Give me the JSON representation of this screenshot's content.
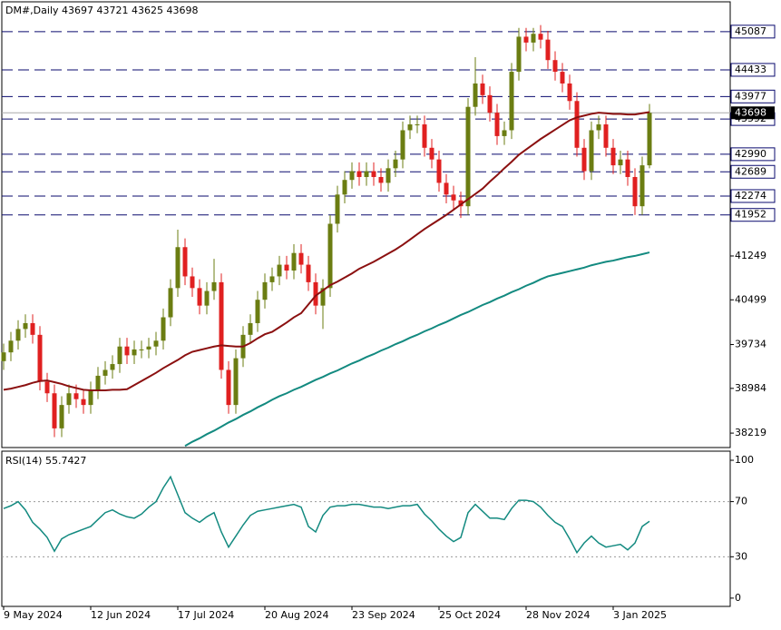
{
  "chart_data": {
    "type": "candlestick",
    "title": "DM#,Daily  43697 43721 43625 43698",
    "categories": [
      "9 May 2024",
      null,
      null,
      null,
      null,
      null,
      null,
      null,
      null,
      null,
      null,
      null,
      "12 Jun 2024",
      null,
      null,
      null,
      null,
      null,
      null,
      null,
      null,
      null,
      null,
      null,
      "17 Jul 2024",
      null,
      null,
      null,
      null,
      null,
      null,
      null,
      null,
      null,
      null,
      null,
      "20 Aug 2024",
      null,
      null,
      null,
      null,
      null,
      null,
      null,
      null,
      null,
      null,
      null,
      "23 Sep 2024",
      null,
      null,
      null,
      null,
      null,
      null,
      null,
      null,
      null,
      null,
      null,
      "25 Oct 2024",
      null,
      null,
      null,
      null,
      null,
      null,
      null,
      null,
      null,
      null,
      null,
      "28 Nov 2024",
      null,
      null,
      null,
      null,
      null,
      null,
      null,
      null,
      null,
      null,
      null,
      "3 Jan 2025",
      null,
      null,
      null,
      null,
      null
    ],
    "candles": [
      [
        39450,
        39750,
        39300,
        39600
      ],
      [
        39600,
        39950,
        39450,
        39800
      ],
      [
        39800,
        40150,
        39650,
        40000
      ],
      [
        40000,
        40250,
        39850,
        40100
      ],
      [
        40100,
        40250,
        39750,
        39900
      ],
      [
        39900,
        40050,
        38950,
        39100
      ],
      [
        39100,
        39250,
        38750,
        38900
      ],
      [
        38900,
        39050,
        38150,
        38300
      ],
      [
        38300,
        38850,
        38150,
        38700
      ],
      [
        38700,
        39050,
        38550,
        38900
      ],
      [
        38900,
        39050,
        38650,
        38800
      ],
      [
        38800,
        38950,
        38550,
        38700
      ],
      [
        38700,
        39100,
        38550,
        38950
      ],
      [
        38950,
        39350,
        38800,
        39200
      ],
      [
        39200,
        39450,
        39050,
        39300
      ],
      [
        39300,
        39550,
        39150,
        39400
      ],
      [
        39400,
        39850,
        39250,
        39700
      ],
      [
        39700,
        39850,
        39400,
        39550
      ],
      [
        39550,
        39800,
        39400,
        39650
      ],
      [
        39650,
        39800,
        39500,
        39650
      ],
      [
        39650,
        39850,
        39500,
        39700
      ],
      [
        39700,
        39950,
        39550,
        39800
      ],
      [
        39800,
        40350,
        39650,
        40200
      ],
      [
        40200,
        40850,
        40050,
        40700
      ],
      [
        40700,
        41700,
        40550,
        41400
      ],
      [
        41400,
        41550,
        40750,
        40900
      ],
      [
        40900,
        41050,
        40550,
        40700
      ],
      [
        40700,
        40850,
        40250,
        40400
      ],
      [
        40400,
        40800,
        40250,
        40650
      ],
      [
        40650,
        41200,
        40500,
        40800
      ],
      [
        40800,
        40950,
        39150,
        39300
      ],
      [
        39300,
        39450,
        38550,
        38700
      ],
      [
        38700,
        39650,
        38550,
        39500
      ],
      [
        39500,
        40050,
        39350,
        39900
      ],
      [
        39900,
        40250,
        39750,
        40100
      ],
      [
        40100,
        40650,
        39950,
        40500
      ],
      [
        40500,
        40950,
        40350,
        40800
      ],
      [
        40800,
        41050,
        40650,
        40900
      ],
      [
        40900,
        41250,
        40750,
        41100
      ],
      [
        41100,
        41250,
        40850,
        41000
      ],
      [
        41000,
        41450,
        40850,
        41300
      ],
      [
        41300,
        41450,
        40950,
        41100
      ],
      [
        41100,
        41250,
        40650,
        40800
      ],
      [
        40800,
        40950,
        40250,
        40400
      ],
      [
        40400,
        40850,
        40000,
        40700
      ],
      [
        40700,
        41950,
        40550,
        41800
      ],
      [
        41800,
        42450,
        41650,
        42300
      ],
      [
        42300,
        42700,
        42150,
        42550
      ],
      [
        42550,
        42850,
        42400,
        42700
      ],
      [
        42700,
        42850,
        42450,
        42600
      ],
      [
        42600,
        42850,
        42450,
        42700
      ],
      [
        42700,
        42850,
        42450,
        42600
      ],
      [
        42600,
        42750,
        42350,
        42500
      ],
      [
        42500,
        42900,
        42350,
        42750
      ],
      [
        42750,
        43050,
        42600,
        42900
      ],
      [
        42900,
        43550,
        42750,
        43400
      ],
      [
        43400,
        43650,
        43250,
        43500
      ],
      [
        43500,
        43650,
        43350,
        43500
      ],
      [
        43500,
        43650,
        42950,
        43100
      ],
      [
        43100,
        43250,
        42750,
        42900
      ],
      [
        42900,
        43050,
        42350,
        42500
      ],
      [
        42500,
        42650,
        42150,
        42300
      ],
      [
        42300,
        42450,
        42050,
        42200
      ],
      [
        42200,
        42350,
        41900,
        42100
      ],
      [
        42100,
        43950,
        41950,
        43800
      ],
      [
        43800,
        44650,
        43650,
        44200
      ],
      [
        44200,
        44350,
        43850,
        44000
      ],
      [
        44000,
        44150,
        43550,
        43700
      ],
      [
        43700,
        43850,
        43150,
        43300
      ],
      [
        43300,
        43550,
        43150,
        43400
      ],
      [
        43400,
        44550,
        43250,
        44400
      ],
      [
        44400,
        45150,
        44250,
        45000
      ],
      [
        45000,
        45150,
        44750,
        44900
      ],
      [
        44900,
        45150,
        44750,
        45050
      ],
      [
        45050,
        45200,
        44800,
        44950
      ],
      [
        44950,
        45100,
        44450,
        44600
      ],
      [
        44600,
        44750,
        44250,
        44400
      ],
      [
        44400,
        44550,
        44050,
        44200
      ],
      [
        44200,
        44350,
        43750,
        43900
      ],
      [
        43900,
        44050,
        42950,
        43100
      ],
      [
        43100,
        43250,
        42550,
        42700
      ],
      [
        42700,
        43550,
        42550,
        43400
      ],
      [
        43400,
        43650,
        43250,
        43500
      ],
      [
        43500,
        43650,
        42950,
        43100
      ],
      [
        43100,
        43250,
        42650,
        42800
      ],
      [
        42800,
        43050,
        42650,
        42900
      ],
      [
        42900,
        43050,
        42450,
        42600
      ],
      [
        42600,
        42750,
        41950,
        42100
      ],
      [
        42100,
        42950,
        41950,
        42800
      ],
      [
        42800,
        43850,
        42750,
        43698
      ]
    ],
    "up_color": "#6b7d12",
    "down_color": "#e02020",
    "ma_lines": [
      {
        "color": "#8b1010",
        "values": [
          38960,
          38980,
          39010,
          39040,
          39080,
          39110,
          39120,
          39090,
          39060,
          39020,
          38990,
          38960,
          38950,
          38950,
          38950,
          38960,
          38960,
          38970,
          39040,
          39110,
          39180,
          39250,
          39330,
          39400,
          39470,
          39550,
          39610,
          39640,
          39670,
          39700,
          39720,
          39710,
          39700,
          39700,
          39760,
          39840,
          39910,
          39950,
          40030,
          40110,
          40200,
          40270,
          40420,
          40570,
          40660,
          40750,
          40810,
          40880,
          40950,
          41030,
          41090,
          41150,
          41220,
          41290,
          41360,
          41440,
          41530,
          41620,
          41710,
          41790,
          41870,
          41950,
          42040,
          42130,
          42220,
          42310,
          42400,
          42520,
          42630,
          42750,
          42860,
          42980,
          43070,
          43160,
          43250,
          43330,
          43410,
          43490,
          43570,
          43620,
          43650,
          43680,
          43700,
          43690,
          43680,
          43680,
          43670,
          43670,
          43690,
          43710
        ]
      },
      {
        "color": "#138a80",
        "values": [
          null,
          null,
          null,
          null,
          null,
          null,
          null,
          null,
          null,
          null,
          null,
          null,
          null,
          null,
          null,
          null,
          null,
          null,
          null,
          null,
          null,
          null,
          null,
          null,
          null,
          38000,
          38070,
          38130,
          38200,
          38260,
          38330,
          38400,
          38460,
          38530,
          38590,
          38660,
          38720,
          38790,
          38850,
          38900,
          38960,
          39010,
          39070,
          39130,
          39180,
          39240,
          39290,
          39350,
          39410,
          39460,
          39520,
          39570,
          39630,
          39680,
          39740,
          39790,
          39850,
          39900,
          39960,
          40010,
          40070,
          40120,
          40180,
          40240,
          40290,
          40350,
          40410,
          40460,
          40520,
          40570,
          40630,
          40680,
          40740,
          40790,
          40850,
          40900,
          40930,
          40960,
          40990,
          41020,
          41050,
          41090,
          41120,
          41150,
          41170,
          41200,
          41230,
          41250,
          41280,
          41310
        ]
      }
    ],
    "ylim": [
      37972,
      45597
    ],
    "yticks": [
      38219,
      38984,
      39734,
      40499,
      41249
    ],
    "levels": [
      41952,
      42274,
      42689,
      42990,
      43592,
      43977,
      44433,
      45087
    ],
    "level_color": "#0a0a6e",
    "current_price": 43698,
    "rsi": {
      "label": "RSI(14) 55.7427",
      "color": "#138a80",
      "values": [
        65,
        67,
        70,
        64,
        55,
        50,
        44,
        34,
        43,
        46,
        48,
        50,
        52,
        57,
        62,
        64,
        61,
        59,
        58,
        61,
        66,
        70,
        80,
        88,
        75,
        62,
        58,
        55,
        59,
        62,
        48,
        37,
        45,
        53,
        60,
        63,
        64,
        65,
        66,
        67,
        68,
        66,
        52,
        48,
        60,
        66,
        67,
        67,
        68,
        68,
        67,
        66,
        66,
        65,
        66,
        67,
        67,
        68,
        61,
        56,
        50,
        45,
        41,
        44,
        62,
        68,
        63,
        58,
        58,
        57,
        65,
        71,
        71,
        70,
        66,
        60,
        55,
        52,
        43,
        33,
        40,
        45,
        40,
        37,
        38,
        39,
        35,
        40,
        52,
        55.7427
      ],
      "ylim": [
        -6,
        106.6
      ],
      "yticks": [
        100,
        70,
        30,
        0
      ],
      "levels": [
        70,
        30
      ]
    }
  }
}
